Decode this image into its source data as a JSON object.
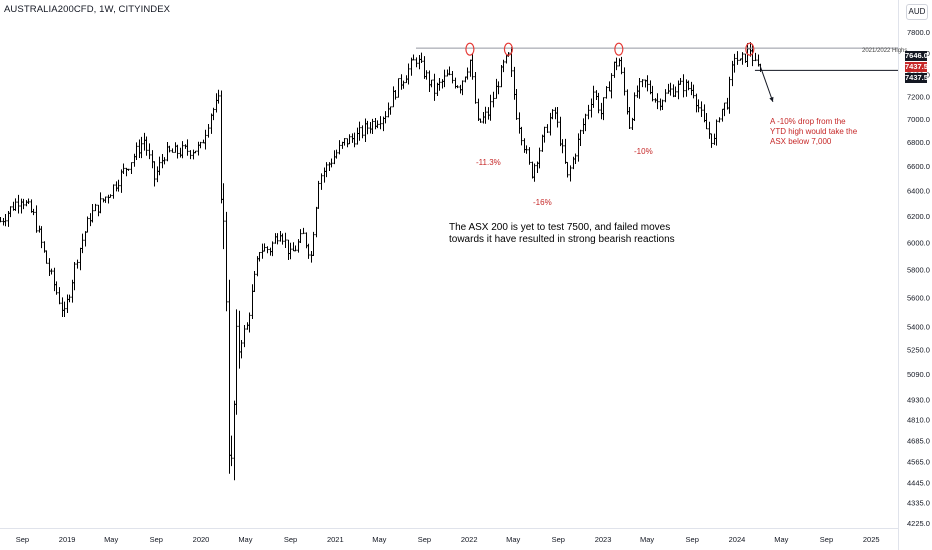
{
  "header": {
    "title": "AUSTRALIA200CFD, 1W, CITYINDEX",
    "currency": "AUD"
  },
  "chart_data": {
    "type": "candlestick",
    "y_scale": "log",
    "ylim": [
      4200,
      7900
    ],
    "y_ticks": [
      "7800.0",
      "7600.0",
      "7400.0",
      "7200.0",
      "7000.0",
      "6800.0",
      "6600.0",
      "6400.0",
      "6200.0",
      "6000.0",
      "5800.0",
      "5600.0",
      "5400.0",
      "5250.0",
      "5090.0",
      "4930.0",
      "4810.0",
      "4685.0",
      "4565.0",
      "4445.0",
      "4335.0",
      "4225.0"
    ],
    "x_ticks": [
      {
        "label": "Sep",
        "x": "2018-09"
      },
      {
        "label": "2019",
        "x": "2019-01"
      },
      {
        "label": "May",
        "x": "2019-05"
      },
      {
        "label": "Sep",
        "x": "2019-09"
      },
      {
        "label": "2020",
        "x": "2020-01"
      },
      {
        "label": "May",
        "x": "2020-05"
      },
      {
        "label": "Sep",
        "x": "2020-09"
      },
      {
        "label": "2021",
        "x": "2021-01"
      },
      {
        "label": "May",
        "x": "2021-05"
      },
      {
        "label": "Sep",
        "x": "2021-09"
      },
      {
        "label": "2022",
        "x": "2022-01"
      },
      {
        "label": "May",
        "x": "2022-05"
      },
      {
        "label": "Sep",
        "x": "2022-09"
      },
      {
        "label": "2023",
        "x": "2023-01"
      },
      {
        "label": "May",
        "x": "2023-05"
      },
      {
        "label": "Sep",
        "x": "2023-09"
      },
      {
        "label": "2024",
        "x": "2024-01"
      },
      {
        "label": "May",
        "x": "2024-05"
      },
      {
        "label": "Sep",
        "x": "2024-09"
      },
      {
        "label": "2025",
        "x": "2025-01"
      }
    ],
    "anchors": [
      [
        "2018-07-02",
        6160
      ],
      [
        "2018-08-27",
        6350
      ],
      [
        "2018-10-01",
        6200
      ],
      [
        "2018-11-05",
        5850
      ],
      [
        "2018-12-24",
        5480
      ],
      [
        "2019-01-28",
        5900
      ],
      [
        "2019-03-04",
        6200
      ],
      [
        "2019-04-29",
        6400
      ],
      [
        "2019-06-24",
        6650
      ],
      [
        "2019-07-29",
        6820
      ],
      [
        "2019-08-26",
        6500
      ],
      [
        "2019-09-23",
        6700
      ],
      [
        "2019-11-04",
        6720
      ],
      [
        "2019-12-30",
        6750
      ],
      [
        "2020-01-27",
        7050
      ],
      [
        "2020-02-17",
        7150
      ],
      [
        "2020-02-24",
        6500
      ],
      [
        "2020-03-09",
        5650
      ],
      [
        "2020-03-16",
        4700
      ],
      [
        "2020-03-23",
        4500
      ],
      [
        "2020-04-06",
        5250
      ],
      [
        "2020-05-04",
        5400
      ],
      [
        "2020-06-08",
        5950
      ],
      [
        "2020-07-06",
        5950
      ],
      [
        "2020-08-03",
        6100
      ],
      [
        "2020-08-31",
        5900
      ],
      [
        "2020-10-05",
        6050
      ],
      [
        "2020-10-26",
        5900
      ],
      [
        "2020-11-16",
        6500
      ],
      [
        "2020-12-21",
        6650
      ],
      [
        "2021-01-25",
        6800
      ],
      [
        "2021-03-01",
        6850
      ],
      [
        "2021-04-05",
        6950
      ],
      [
        "2021-05-17",
        7050
      ],
      [
        "2021-06-21",
        7300
      ],
      [
        "2021-08-09",
        7550
      ],
      [
        "2021-08-30",
        7420
      ],
      [
        "2021-09-27",
        7250
      ],
      [
        "2021-11-01",
        7380
      ],
      [
        "2021-12-06",
        7300
      ],
      [
        "2022-01-03",
        7530
      ],
      [
        "2022-01-24",
        6950
      ],
      [
        "2022-02-21",
        7050
      ],
      [
        "2022-04-04",
        7480
      ],
      [
        "2022-04-18",
        7560
      ],
      [
        "2022-05-09",
        7050
      ],
      [
        "2022-06-13",
        6600
      ],
      [
        "2022-06-20",
        6550
      ],
      [
        "2022-08-08",
        7000
      ],
      [
        "2022-08-22",
        7050
      ],
      [
        "2022-09-26",
        6500
      ],
      [
        "2022-10-24",
        6800
      ],
      [
        "2022-12-05",
        7250
      ],
      [
        "2022-12-26",
        7050
      ],
      [
        "2023-01-30",
        7480
      ],
      [
        "2023-02-13",
        7530
      ],
      [
        "2023-03-13",
        6950
      ],
      [
        "2023-04-03",
        7250
      ],
      [
        "2023-04-24",
        7320
      ],
      [
        "2023-05-29",
        7150
      ],
      [
        "2023-07-03",
        7250
      ],
      [
        "2023-08-07",
        7300
      ],
      [
        "2023-09-04",
        7250
      ],
      [
        "2023-10-02",
        6950
      ],
      [
        "2023-10-30",
        6800
      ],
      [
        "2023-11-13",
        7050
      ],
      [
        "2023-12-04",
        7150
      ],
      [
        "2023-12-25",
        7580
      ],
      [
        "2024-01-08",
        7500
      ],
      [
        "2024-02-05",
        7640
      ],
      [
        "2024-02-19",
        7480
      ],
      [
        "2024-03-04",
        7437.5
      ]
    ],
    "resistance": {
      "value": 7646.0,
      "label": "2021/2022 Highs",
      "from": "2021-08-09"
    },
    "price_tags": [
      {
        "value": "7646.0",
        "color": "#131722"
      },
      {
        "value": "7437.5",
        "color": "#c62828"
      },
      {
        "value": "7437.5",
        "color": "#131722"
      }
    ],
    "circles": [
      "2022-01-03",
      "2022-04-18",
      "2023-02-13",
      "2024-02-05"
    ],
    "annotations": {
      "drawdowns": [
        {
          "label": "-11.3%",
          "x": "2022-01-24"
        },
        {
          "label": "-16%",
          "x": "2022-06-20"
        },
        {
          "label": "-10%",
          "x": "2023-03-13"
        }
      ],
      "main_text": "The ASX 200 is yet to test 7500, and failed moves towards it have resulted in strong bearish reactions",
      "arrow_note": "A -10% drop from the YTD high would take the ASX below 7,000"
    }
  }
}
